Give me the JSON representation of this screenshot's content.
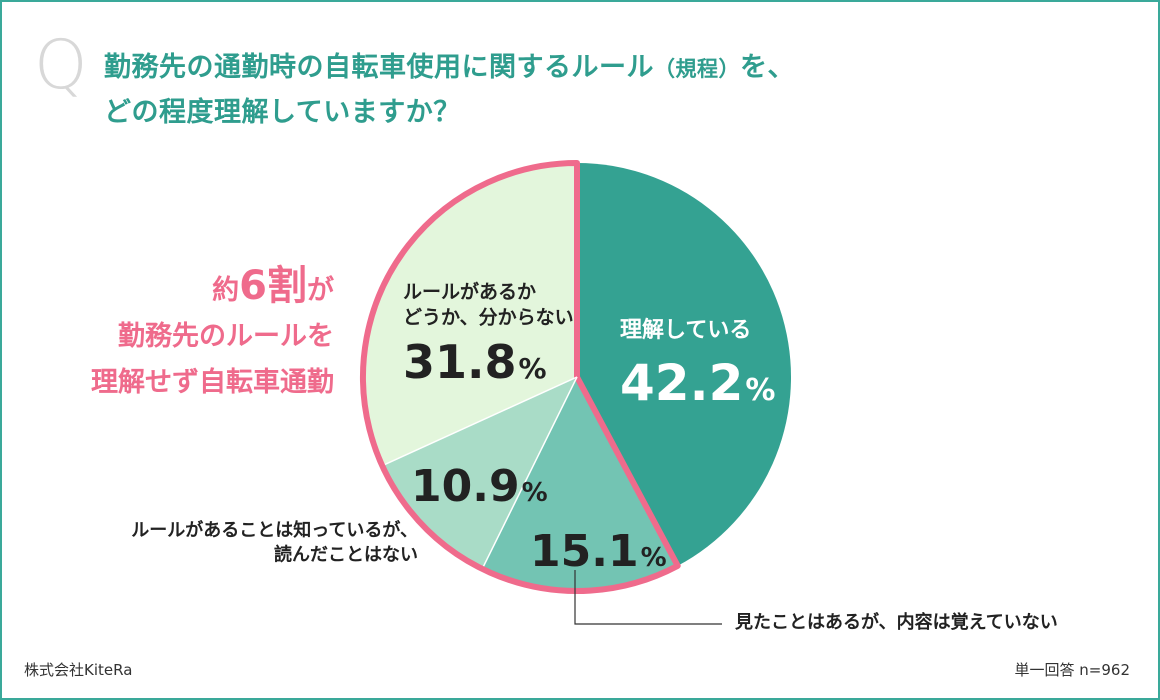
{
  "header": {
    "q_mark": "Q",
    "question_line1_main": "勤務先の通勤時の自転車使用に関するルール",
    "question_line1_paren": "（規程）",
    "question_line1_tail": "を、",
    "question_line2": "どの程度理解していますか？"
  },
  "callout": {
    "line1_pre": "約",
    "line1_big": "6割",
    "line1_post": "が",
    "line2": "勤務先のルールを",
    "line3": "理解せず自転車通勤"
  },
  "footer": {
    "company": "株式会社KiteRa",
    "sample": "単一回答 n=962"
  },
  "chart_data": {
    "type": "pie",
    "title": "",
    "start_angle_deg": 0,
    "direction": "clockwise",
    "slices": [
      {
        "label_lines": [
          "理解している"
        ],
        "value_text": "42.2",
        "value": 42.2,
        "color": "#34a292"
      },
      {
        "label_lines": [
          "見たことはあるが、内容は覚えていない"
        ],
        "value_text": "15.1",
        "value": 15.1,
        "color": "#73c4b3"
      },
      {
        "label_lines": [
          "ルールがあることは知っているが、",
          "読んだことはない"
        ],
        "value_text": "10.9",
        "value": 10.9,
        "color": "#a9dcc7"
      },
      {
        "label_lines": [
          "ルールがあるか",
          "どうか、分からない"
        ],
        "value_text": "31.8",
        "value": 31.8,
        "color": "#e3f6dc"
      }
    ],
    "percent_sign": "%",
    "highlight_color": "#ef6b8c",
    "text_color_dark": "#222222",
    "text_color_light": "#ffffff"
  }
}
